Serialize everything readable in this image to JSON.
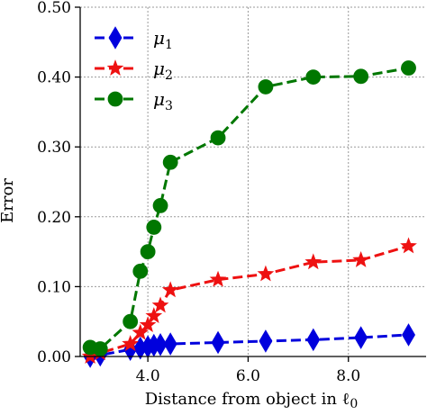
{
  "chart_data": {
    "type": "line",
    "title": "",
    "xlabel": "Distance from object in ℓ",
    "xlabel_sub": "0",
    "ylabel": "Error",
    "xlim": [
      2.65,
      9.55
    ],
    "ylim": [
      0.0,
      0.5
    ],
    "xticks": [
      4.0,
      6.0,
      8.0
    ],
    "xtick_labels": [
      "4.0",
      "6.0",
      "8.0"
    ],
    "yticks": [
      0.0,
      0.1,
      0.2,
      0.3,
      0.4,
      0.5
    ],
    "ytick_labels": [
      "0.00",
      "0.10",
      "0.20",
      "0.30",
      "0.40",
      "0.50"
    ],
    "grid": true,
    "legend_position": "top-left",
    "series": [
      {
        "name": "μ",
        "name_sub": "1",
        "color": "#0000dd",
        "marker": "diamond",
        "linestyle": "dashed",
        "points": [
          [
            2.85,
            0.0
          ],
          [
            3.05,
            0.002
          ],
          [
            3.65,
            0.01
          ],
          [
            3.85,
            0.012
          ],
          [
            4.0,
            0.014
          ],
          [
            4.12,
            0.016
          ],
          [
            4.25,
            0.017
          ],
          [
            4.45,
            0.018
          ],
          [
            5.4,
            0.02
          ],
          [
            6.35,
            0.022
          ],
          [
            7.3,
            0.024
          ],
          [
            8.25,
            0.027
          ],
          [
            9.2,
            0.031
          ]
        ]
      },
      {
        "name": "μ",
        "name_sub": "2",
        "color": "#ee1111",
        "marker": "star",
        "linestyle": "dashed",
        "points": [
          [
            2.85,
            0.0
          ],
          [
            3.05,
            0.005
          ],
          [
            3.65,
            0.018
          ],
          [
            3.85,
            0.034
          ],
          [
            4.0,
            0.045
          ],
          [
            4.12,
            0.058
          ],
          [
            4.25,
            0.073
          ],
          [
            4.45,
            0.095
          ],
          [
            5.4,
            0.11
          ],
          [
            6.35,
            0.118
          ],
          [
            7.3,
            0.135
          ],
          [
            8.25,
            0.138
          ],
          [
            9.2,
            0.158
          ]
        ]
      },
      {
        "name": "μ",
        "name_sub": "3",
        "color": "#007700",
        "marker": "circle",
        "linestyle": "dashed",
        "points": [
          [
            2.85,
            0.013
          ],
          [
            3.05,
            0.011
          ],
          [
            3.65,
            0.05
          ],
          [
            3.85,
            0.122
          ],
          [
            4.0,
            0.15
          ],
          [
            4.12,
            0.185
          ],
          [
            4.25,
            0.216
          ],
          [
            4.45,
            0.278
          ],
          [
            5.4,
            0.313
          ],
          [
            6.35,
            0.386
          ],
          [
            7.3,
            0.4
          ],
          [
            8.25,
            0.401
          ],
          [
            9.2,
            0.413
          ]
        ]
      }
    ]
  }
}
